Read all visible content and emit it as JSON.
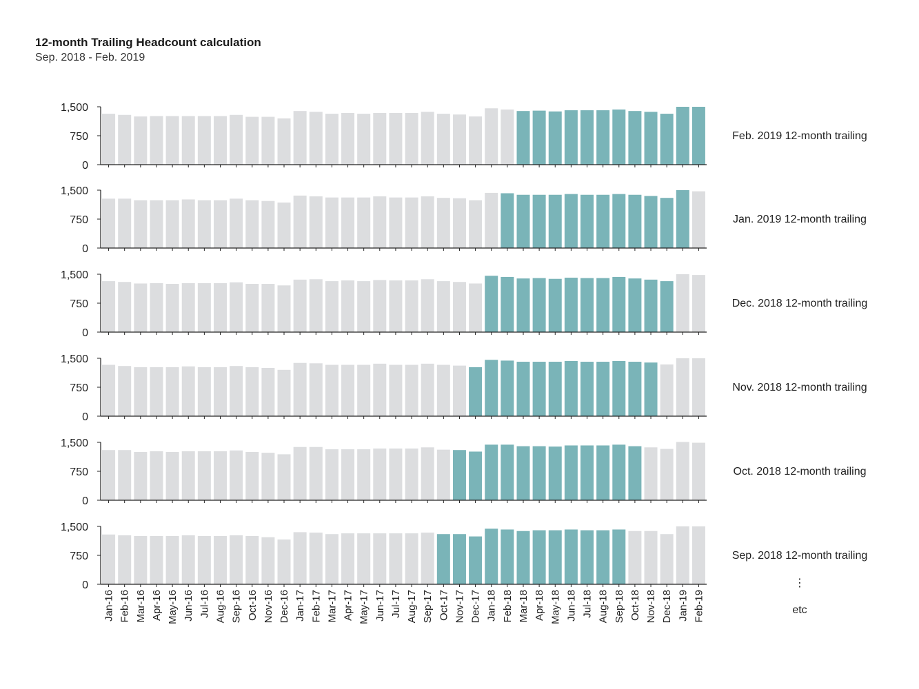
{
  "chart_data": {
    "type": "bar",
    "title": "12-month Trailing Headcount calculation",
    "subtitle": "Sep. 2018 - Feb. 2019",
    "colors": {
      "base": "#dcdddf",
      "highlight": "#7ab4b8",
      "axis": "#222222"
    },
    "categories": [
      "Jan-16",
      "Feb-16",
      "Mar-16",
      "Apr-16",
      "May-16",
      "Jun-16",
      "Jul-16",
      "Aug-16",
      "Sep-16",
      "Oct-16",
      "Nov-16",
      "Dec-16",
      "Jan-17",
      "Feb-17",
      "Mar-17",
      "Apr-17",
      "May-17",
      "Jun-17",
      "Jul-17",
      "Aug-17",
      "Sep-17",
      "Oct-17",
      "Nov-17",
      "Dec-17",
      "Jan-18",
      "Feb-18",
      "Mar-18",
      "Apr-18",
      "May-18",
      "Jun-18",
      "Jul-18",
      "Aug-18",
      "Sep-18",
      "Oct-18",
      "Nov-18",
      "Dec-18",
      "Jan-19",
      "Feb-19"
    ],
    "yticks": [
      0,
      750,
      1500
    ],
    "ytick_labels": [
      "0",
      "750",
      "1,500"
    ],
    "ylim": [
      0,
      1500
    ],
    "panels": [
      {
        "label": "Feb. 2019 12-month trailing",
        "highlight_start": 26,
        "highlight_end": 37,
        "values": [
          1320,
          1290,
          1250,
          1260,
          1260,
          1260,
          1260,
          1260,
          1290,
          1240,
          1240,
          1200,
          1390,
          1370,
          1320,
          1340,
          1320,
          1340,
          1340,
          1340,
          1370,
          1320,
          1300,
          1250,
          1460,
          1430,
          1390,
          1400,
          1380,
          1410,
          1410,
          1410,
          1430,
          1390,
          1370,
          1320,
          1500,
          1500
        ]
      },
      {
        "label": "Jan. 2019 12-month trailing",
        "highlight_start": 25,
        "highlight_end": 36,
        "values": [
          1280,
          1280,
          1240,
          1240,
          1240,
          1260,
          1240,
          1240,
          1280,
          1240,
          1220,
          1180,
          1360,
          1340,
          1310,
          1310,
          1310,
          1340,
          1310,
          1310,
          1340,
          1300,
          1290,
          1240,
          1430,
          1420,
          1380,
          1380,
          1380,
          1400,
          1380,
          1380,
          1400,
          1380,
          1350,
          1300,
          1500,
          1470
        ]
      },
      {
        "label": "Dec. 2018 12-month trailing",
        "highlight_start": 24,
        "highlight_end": 35,
        "values": [
          1320,
          1300,
          1260,
          1270,
          1250,
          1270,
          1270,
          1270,
          1290,
          1250,
          1250,
          1210,
          1360,
          1370,
          1320,
          1340,
          1320,
          1350,
          1340,
          1340,
          1370,
          1320,
          1300,
          1260,
          1460,
          1430,
          1390,
          1400,
          1380,
          1410,
          1400,
          1400,
          1430,
          1390,
          1360,
          1320,
          1500,
          1480
        ]
      },
      {
        "label": "Nov. 2018 12-month trailing",
        "highlight_start": 23,
        "highlight_end": 34,
        "values": [
          1330,
          1300,
          1270,
          1270,
          1270,
          1290,
          1270,
          1270,
          1300,
          1270,
          1250,
          1200,
          1380,
          1370,
          1330,
          1330,
          1330,
          1360,
          1330,
          1330,
          1360,
          1330,
          1310,
          1270,
          1460,
          1440,
          1410,
          1410,
          1410,
          1430,
          1410,
          1410,
          1430,
          1410,
          1390,
          1340,
          1500,
          1500
        ]
      },
      {
        "label": "Oct. 2018 12-month trailing",
        "highlight_start": 22,
        "highlight_end": 33,
        "values": [
          1300,
          1300,
          1250,
          1270,
          1250,
          1270,
          1270,
          1270,
          1290,
          1250,
          1230,
          1190,
          1380,
          1380,
          1320,
          1320,
          1320,
          1340,
          1340,
          1340,
          1370,
          1310,
          1300,
          1260,
          1440,
          1440,
          1400,
          1400,
          1390,
          1420,
          1420,
          1420,
          1440,
          1400,
          1370,
          1330,
          1510,
          1490
        ]
      },
      {
        "label": "Sep. 2018 12-month trailing",
        "highlight_start": 21,
        "highlight_end": 32,
        "values": [
          1290,
          1270,
          1250,
          1250,
          1250,
          1270,
          1250,
          1250,
          1270,
          1250,
          1220,
          1160,
          1350,
          1340,
          1300,
          1320,
          1320,
          1320,
          1320,
          1320,
          1340,
          1300,
          1300,
          1240,
          1440,
          1420,
          1380,
          1400,
          1400,
          1420,
          1400,
          1400,
          1420,
          1380,
          1380,
          1300,
          1500,
          1500
        ]
      }
    ],
    "continuation_mark": "⋮",
    "continuation_text": "etc"
  }
}
